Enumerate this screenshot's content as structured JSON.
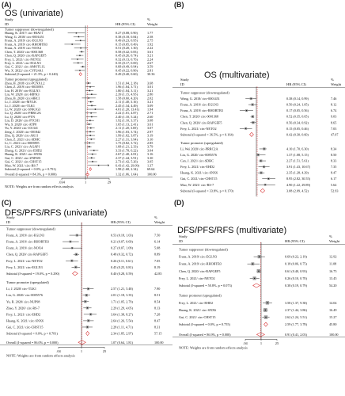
{
  "chart_data": [
    {
      "type": "forest",
      "label": "(A)",
      "title": "OS (univariate)",
      "header": {
        "study": "Study",
        "id": "ID",
        "hr": "HR (95% CI)",
        "weight_line1": "%",
        "weight_line2": "Weight"
      },
      "groups": [
        {
          "name": "Tumor suppressor (downregulated)",
          "rows": [
            {
              "study": "Huang, K. 2017/ circ-HIAT1",
              "hr": 0.27,
              "lo": 0.08,
              "hi": 0.9,
              "w": "1.77"
            },
            {
              "study": "Wang, G. 2018/ circ-0001451",
              "hr": 0.38,
              "lo": 0.18,
              "hi": 0.84,
              "w": "2.58"
            },
            {
              "study": "Franz, A. 2019/ circ-EGLN3",
              "hr": 0.49,
              "lo": 0.23,
              "hi": 0.95,
              "w": "2.75"
            },
            {
              "study": "Franz, A. 2019/ circ-RHOBTB3",
              "hr": 0.15,
              "lo": 0.05,
              "hi": 0.49,
              "w": "1.92"
            },
            {
              "study": "Franz, A. 2019/ circ-NOX4",
              "hr": 0.51,
              "lo": 0.2,
              "hi": 1.3,
              "w": "2.22"
            },
            {
              "study": "Chen, T. 2020/ circ-0001368",
              "hr": 0.58,
              "lo": 0.42,
              "hi": 0.83,
              "w": "3.61"
            },
            {
              "study": "Chen, Q. 2020/ circ-RAPGEF5",
              "hr": 0.45,
              "lo": 0.26,
              "hi": 0.74,
              "w": "3.21"
            },
            {
              "study": "Frey, L. 2021/ circ-NETO2",
              "hr": 0.32,
              "lo": 0.13,
              "hi": 0.76,
              "w": "2.24"
            },
            {
              "study": "Frey, L. 2021/ circ-EGLN3",
              "hr": 0.35,
              "lo": 0.17,
              "hi": 0.69,
              "w": "2.67"
            },
            {
              "study": "Gui, C. 2021/ circ-AMOTL1L",
              "hr": 0.68,
              "lo": 0.49,
              "hi": 0.94,
              "w": "3.59"
            },
            {
              "study": "Wu, X. 2022/ circ-CYP24A1",
              "hr": 0.45,
              "lo": 0.22,
              "hi": 0.9,
              "w": "2.81"
            }
          ],
          "subtotal": {
            "label": "Subtotal  (I-squared = 21.3%, p = 0.240)",
            "hr": 0.49,
            "lo": 0.4,
            "hi": 0.6,
            "w": "30.36"
          }
        },
        {
          "name": "Tumor promoter (upregulated)",
          "rows": [
            {
              "study": "Zhou, B. 2018/ circ-PCNX1.2",
              "hr": 1.51,
              "lo": 1.04,
              "hi": 2.18,
              "w": "3.68"
            },
            {
              "study": "Chen, Z. 2019/ circ-0035093",
              "hr": 1.96,
              "lo": 1.04,
              "hi": 3.71,
              "w": "3.01"
            },
            {
              "study": "Liu, H. 2019/ circ-EGLN3",
              "hr": 1.8,
              "lo": 1.04,
              "hi": 3.11,
              "w": "3.21"
            },
            {
              "study": "Liu, W. 2020/ circ-HIPK3",
              "hr": 2.39,
              "lo": 1.15,
              "hi": 4.95,
              "w": "2.80"
            },
            {
              "study": "Zhou, B. 2020/ circ-HRC1",
              "hr": 1.58,
              "lo": 0.6,
              "hi": 4.2,
              "w": "2.02"
            },
            {
              "study": "Li, J. 2020/ circ-MYLK",
              "hr": 2.11,
              "lo": 1.4,
              "hi": 3.16,
              "w": "3.21"
            },
            {
              "study": "Li, J. 2020/ circ-TLK1",
              "hr": 2.45,
              "lo": 1.34,
              "hi": 4.49,
              "w": "3.09"
            },
            {
              "study": "Li, W. 2020/ circ-SNK1G3",
              "hr": 4.01,
              "lo": 1.2,
              "hi": 13.41,
              "w": "1.94"
            },
            {
              "study": "Lu, Q. 2020/ circ-PRRC2A",
              "hr": 2.22,
              "lo": 1.01,
              "hi": 4.87,
              "w": "2.71"
            },
            {
              "study": "Lu, Q. 2020/ circ-PTN",
              "hr": 2.4,
              "lo": 1.1,
              "hi": 5.24,
              "w": "2.60"
            },
            {
              "study": "Liu, D. 2020/ circ-PTCH1",
              "hr": 1.92,
              "lo": 1.1,
              "hi": 3.37,
              "w": "3.08"
            },
            {
              "study": "Wu, S. 2020/ circ-ATP8",
              "hr": 1.65,
              "lo": 1.13,
              "hi": 2.41,
              "w": "3.61"
            },
            {
              "study": "Yu, Y. 2020/ circ-101341",
              "hr": 2.11,
              "lo": 1.2,
              "hi": 3.69,
              "w": "3.07"
            },
            {
              "study": "Zeng, J. 2020/ circ-001842",
              "hr": 1.96,
              "lo": 1.03,
              "hi": 3.74,
              "w": "2.97"
            },
            {
              "study": "Zhu, Q. 2020/ circ-AK11",
              "hr": 1.99,
              "lo": 1.02,
              "hi": 3.87,
              "w": "3.19"
            },
            {
              "study": "Chen, Z. 2021/ circ-SDHC",
              "hr": 2.27,
              "lo": 1.31,
              "hi": 3.94,
              "w": "3.10"
            },
            {
              "study": "Li, C. 2021/ circ-0005895",
              "hr": 1.75,
              "lo": 0.82,
              "hi": 3.72,
              "w": "2.85"
            },
            {
              "study": "Liu, C. 2021/ circ-AGAP1",
              "hr": 1.68,
              "lo": 1.21,
              "hi": 2.33,
              "w": "3.79"
            },
            {
              "study": "Zhang, G. 2021/ circ-EHD2",
              "hr": 3.33,
              "lo": 1.78,
              "hi": 6.22,
              "w": "3.04"
            },
            {
              "study": "Huang, K. 2021/ circ-SNX6",
              "hr": 2.67,
              "lo": 1.4,
              "hi": 4.81,
              "w": "3.16"
            },
            {
              "study": "Gui, C. 2021/ circ-ZNF681",
              "hr": 2.37,
              "lo": 1.44,
              "hi": 3.91,
              "w": "3.30"
            },
            {
              "study": "Gui, C. 2021/ circ-CHST15",
              "hr": 2.73,
              "lo": 1.42,
              "hi": 5.26,
              "w": "3.05"
            },
            {
              "study": "Mao, W. 2021/ circ-RS-7",
              "hr": 6.43,
              "lo": 1.42,
              "hi": 29.09,
              "w": "1.37"
            }
          ],
          "subtotal": {
            "label": "Subtotal  (I-squared = 0.0%, p = 0.791)",
            "hr": 1.98,
            "lo": 1.68,
            "hi": 2.34,
            "w": "69.64"
          }
        }
      ],
      "overall": {
        "label": "Overall  (I-squared = 84.3%, p = 0.000)",
        "hr": 1.32,
        "lo": 1.06,
        "hi": 1.64,
        "w": "100.00"
      },
      "note": "NOTE: Weights are from random effects analysis",
      "xticks": [
        ".034",
        "1",
        "29"
      ],
      "xlim": [
        0.034,
        29
      ],
      "scale": "log"
    },
    {
      "type": "forest",
      "label": "(B)",
      "title": "OS (multivariate)",
      "header": {
        "study": "Study",
        "id": "ID",
        "hr": "HR (95% CI)",
        "weight_line1": "%",
        "weight_line2": "Weight"
      },
      "groups": [
        {
          "name": "Tumor suppressor (downregulated)",
          "rows": [
            {
              "study": "Wang, G. 2018/ circ-0001451",
              "hr": 0.38,
              "lo": 0.14,
              "hi": 0.99,
              "w": "7.46"
            },
            {
              "study": "Franz, A. 2019/ circ-EGLN3",
              "hr": 0.5,
              "lo": 0.24,
              "hi": 1.05,
              "w": "8.12"
            },
            {
              "study": "Franz, A. 2019/ circ-RHOBTB3",
              "hr": 0.17,
              "lo": 0.05,
              "hi": 0.56,
              "w": "6.74"
            },
            {
              "study": "Chen, T. 2020/ circ-0001368",
              "hr": 0.52,
              "lo": 0.35,
              "hi": 0.65,
              "w": "9.03"
            },
            {
              "study": "Chen, Q. 2020/ circ-RAPGEF5",
              "hr": 0.56,
              "lo": 0.34,
              "hi": 0.92,
              "w": "8.65"
            },
            {
              "study": "Frey, L. 2021/ circ-NETO2",
              "hr": 0.15,
              "lo": 0.05,
              "hi": 0.46,
              "w": "7.03"
            }
          ],
          "subtotal": {
            "label": "Subtotal  (I-squared = 36.5%, p = 0.164)",
            "hr": 0.42,
            "lo": 0.3,
            "hi": 0.6,
            "w": "47.07"
          }
        },
        {
          "name": "Tumor promoter (upregulated)",
          "rows": [
            {
              "study": "Li, Wei 2020/ circ-PRRC2A",
              "hr": 4.1,
              "lo": 1.7,
              "hi": 6.3,
              "w": "8.34"
            },
            {
              "study": "Liu, G. 2020/ circ-0085576",
              "hr": 1.37,
              "lo": 1.08,
              "hi": 5.15,
              "w": "8.50"
            },
            {
              "study": "Cen, J. 2021/ circ-SDHC",
              "hr": 2.27,
              "lo": 1.51,
              "hi": 5.61,
              "w": "8.33"
            },
            {
              "study": "Frey, L. 2021/ circ-EHD2",
              "hr": 3.91,
              "lo": 1.43,
              "hi": 10.67,
              "w": "7.35"
            },
            {
              "study": "Huang, K. 2021/ circ-SNX6",
              "hr": 2.35,
              "lo": 1.28,
              "hi": 4.29,
              "w": "8.47"
            },
            {
              "study": "Gui, C. 2021/ circ-CHST15",
              "hr": 8.95,
              "lo": 2.82,
              "hi": 30.55,
              "w": "6.17"
            },
            {
              "study": "Mao, W. 2021/ circ-RS-7",
              "hr": 4.9,
              "lo": 1.22,
              "hi": 29.89,
              "w": "5.64"
            }
          ],
          "subtotal": {
            "label": "Subtotal  (I-squared = 33.8%, p = 0.170)",
            "hr": 3.08,
            "lo": 2.09,
            "hi": 4.52,
            "w": "52.93"
          }
        }
      ],
      "overall": {
        "label": "Overall  (I-squared = 88.9%, p = 0.000)",
        "hr": 1.16,
        "lo": 0.64,
        "hi": 2.12,
        "w": "100.00"
      },
      "note": "NOTE: Weights are from random effects analysis",
      "xticks": [
        ".0327",
        "1",
        "30.6"
      ],
      "xlim": [
        0.0327,
        30.6
      ],
      "scale": "log"
    },
    {
      "type": "forest",
      "label": "(C)",
      "title": "DFS/PFS/RFS (univariate)",
      "header": {
        "study": "Study",
        "id": "ID",
        "hr": "HR (95% CI)",
        "weight_line1": "%",
        "weight_line2": "Weight"
      },
      "groups": [
        {
          "name": "Tumor suppressor (downregulated)",
          "rows": [
            {
              "study": "Franz, A. 2019/ circ-EGLN3",
              "hr": 0.53,
              "lo": 0.18,
              "hi": 1.03,
              "w": "7.50"
            },
            {
              "study": "Franz, A. 2019/ circ-RHOBTB3",
              "hr": 0.21,
              "lo": 0.07,
              "hi": 0.69,
              "w": "6.14"
            },
            {
              "study": "Franz, A. 2019/ circ-NOX4",
              "hr": 0.27,
              "lo": 0.07,
              "hi": 1.09,
              "w": "5.08"
            },
            {
              "study": "Chen, Q. 2020/ circ-RAPGEF5",
              "hr": 0.48,
              "lo": 0.32,
              "hi": 0.72,
              "w": "8.89"
            },
            {
              "study": "Frey, L. 2021/ circ-NETO2",
              "hr": 0.26,
              "lo": 0.11,
              "hi": 0.61,
              "w": "7.05"
            },
            {
              "study": "Frey, L. 2021/ circ-EGLN3",
              "hr": 0.45,
              "lo": 0.25,
              "hi": 0.81,
              "w": "8.19"
            }
          ],
          "subtotal": {
            "label": "Subtotal  (I-squared = 19.0%, p = 0.290)",
            "hr": 0.4,
            "lo": 0.28,
            "hi": 0.59,
            "w": "42.85"
          }
        },
        {
          "name": "Tumor promoter (upregulated)",
          "rows": [
            {
              "study": "Li, J. 2020/ circ-TLK1",
              "hr": 2.57,
              "lo": 1.21,
              "hi": 5.48,
              "w": "7.90"
            },
            {
              "study": "Liu, G. 2020/ circ-0085576",
              "hr": 2.01,
              "lo": 1.18,
              "hi": 3.35,
              "w": "8.51"
            },
            {
              "study": "Yu, R. 2020/ circ-NUP98",
              "hr": 1.71,
              "lo": 1.05,
              "hi": 2.79,
              "w": "8.54"
            },
            {
              "study": "Zhao, Y. 2020/ circ-RS-7",
              "hr": 2.29,
              "lo": 1.29,
              "hi": 4.05,
              "w": "8.13"
            },
            {
              "study": "Frey, L. 2021/ circ-EHD2",
              "hr": 3.64,
              "lo": 1.38,
              "hi": 8.27,
              "w": "7.28"
            },
            {
              "study": "Huang, K. 2021/ circ-SNX6",
              "hr": 2.64,
              "lo": 1.26,
              "hi": 5.54,
              "w": "8.47"
            },
            {
              "study": "Gui, C. 2021/ circ-CHST15",
              "hr": 2.28,
              "lo": 1.11,
              "hi": 4.71,
              "w": "8.31"
            }
          ],
          "subtotal": {
            "label": "Subtotal  (I-squared = 0.0%, p = 0.781)",
            "hr": 2.34,
            "lo": 1.85,
            "hi": 2.97,
            "w": "57.15"
          }
        }
      ],
      "overall": {
        "label": "Overall  (I-squared = 86.0%, p = 0.000)",
        "hr": 1.07,
        "lo": 0.64,
        "hi": 1.81,
        "w": "100.00"
      },
      "note": "NOTE: Weights are from random effects analysis",
      "xticks": [
        ".04",
        "1",
        "25"
      ],
      "xlim": [
        0.04,
        25
      ],
      "scale": "log"
    },
    {
      "type": "forest",
      "label": "(D)",
      "title": "DFS/PFS/RFS (multivariate)",
      "header": {
        "study": "Study",
        "id": "ID",
        "hr": "HR (95% CI)",
        "weight_line1": "%",
        "weight_line2": "Weight"
      },
      "groups": [
        {
          "name": "Tumor suppressor (downregulated)",
          "rows": [
            {
              "study": "Franz, A. 2019/ circ-EGLN3",
              "hr": 0.69,
              "lo": 0.22,
              "hi": 2.19,
              "w": "12.92"
            },
            {
              "study": "Franz, A. 2019/ circ-RHOBTB3",
              "hr": 0.18,
              "lo": 0.06,
              "hi": 0.75,
              "w": "11.08"
            },
            {
              "study": "Chen, Q. 2020/ circ-RAPGEF5",
              "hr": 0.61,
              "lo": 0.4,
              "hi": 0.93,
              "w": "16.75"
            },
            {
              "study": "Frey, L. 2021/ circ-NETO2",
              "hr": 0.26,
              "lo": 0.1,
              "hi": 0.7,
              "w": "13.45"
            }
          ],
          "subtotal": {
            "label": "Subtotal  (I-squared = 50.8%, p = 0.073)",
            "hr": 0.38,
            "lo": 0.19,
            "hi": 0.79,
            "w": "54.20"
          }
        },
        {
          "name": "Tumor promoter (upregulated)",
          "rows": [
            {
              "study": "Frey, L. 2021/ circ-EHD2",
              "hr": 3.58,
              "lo": 1.37,
              "hi": 9.38,
              "w": "14.04"
            },
            {
              "study": "Huang, K. 2021/ circ-SNX6",
              "hr": 2.37,
              "lo": 1.44,
              "hi": 3.86,
              "w": "16.49"
            },
            {
              "study": "Gui, C. 2021/ circ-CHST15",
              "hr": 2.62,
              "lo": 1.24,
              "hi": 5.51,
              "w": "15.27"
            }
          ],
          "subtotal": {
            "label": "Subtotal  (I-squared = 0.0%, p = 0.755)",
            "hr": 2.59,
            "lo": 1.77,
            "hi": 3.78,
            "w": "45.80"
          }
        }
      ],
      "overall": {
        "label": "Overall  (I-squared = 86.9%, p = 0.000)",
        "hr": 0.91,
        "lo": 0.41,
        "hi": 2.03,
        "w": "100.00"
      },
      "note": "NOTE: Weights are from random effects analysis",
      "xticks": [
        ".04",
        "1",
        "25"
      ],
      "xlim": [
        0.04,
        25
      ],
      "scale": "log"
    }
  ],
  "colors": {
    "box": "#9a9a9a",
    "point": "#111111",
    "diamond": "#d62728",
    "dash": "#d62728",
    "line": "#222222"
  }
}
